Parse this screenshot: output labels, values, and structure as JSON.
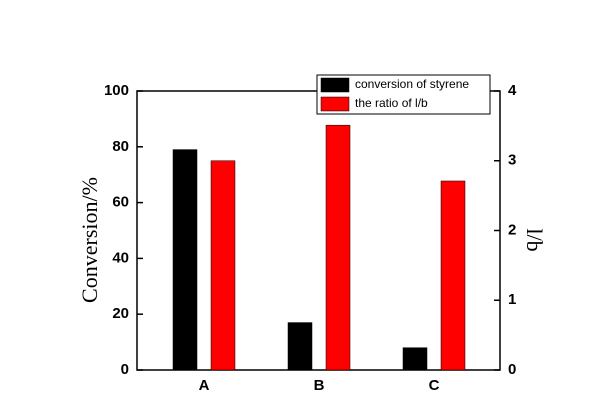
{
  "chart_data": {
    "type": "bar",
    "categories": [
      "A",
      "B",
      "C"
    ],
    "y_label": "Conversion/%",
    "y2_label": "l/b",
    "series": [
      {
        "name": "conversion of styrene",
        "color": "#000000",
        "values": [
          79,
          17,
          8
        ]
      },
      {
        "name": "the  ratio of l/b",
        "color": "#ff0000",
        "values": [
          3.0,
          3.51,
          2.71
        ],
        "axis": "y2"
      }
    ],
    "ylim": [
      0,
      100
    ],
    "yticks": [
      0,
      20,
      40,
      60,
      80,
      100
    ],
    "y2lim": [
      0,
      4
    ],
    "y2ticks": [
      0,
      1,
      2,
      3,
      4
    ],
    "grid": false,
    "legend": "top-right"
  }
}
